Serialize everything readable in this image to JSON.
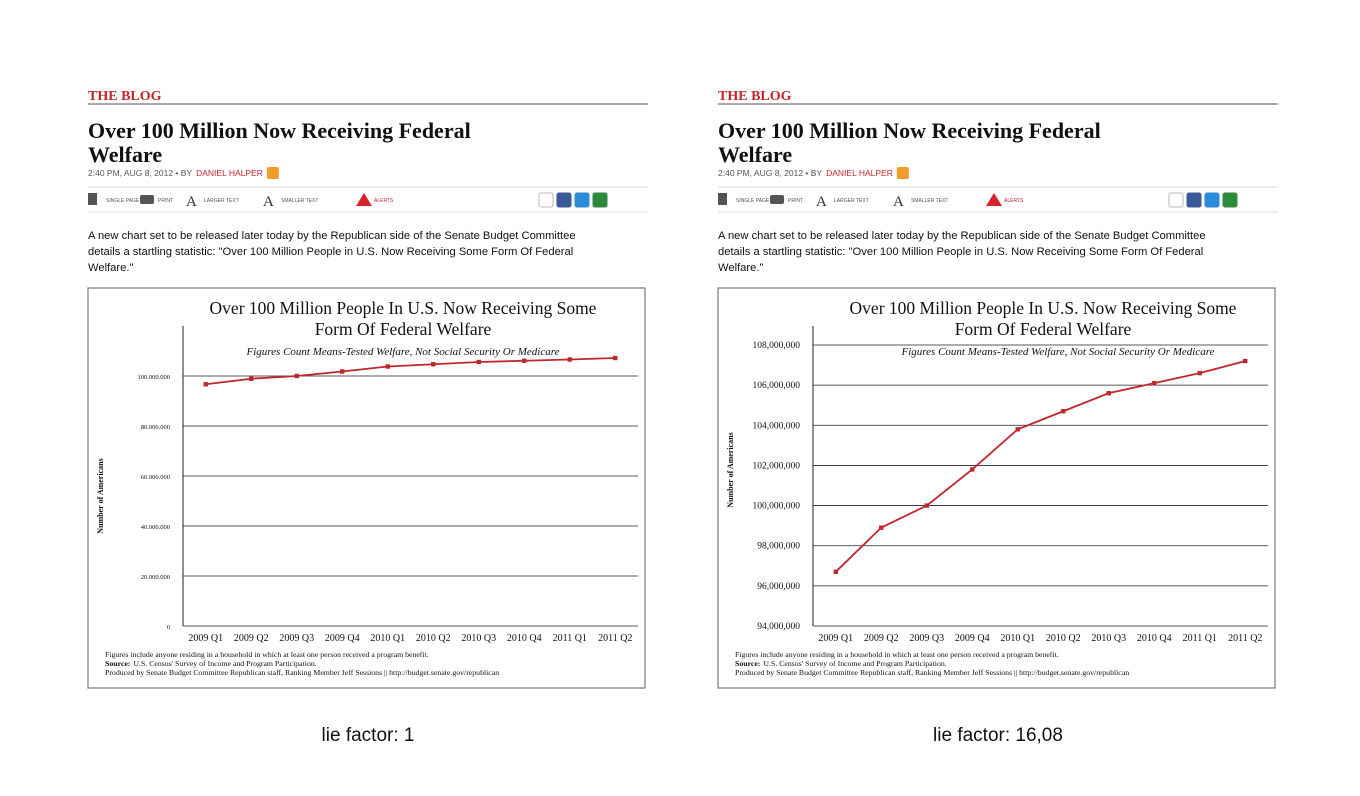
{
  "posts": [
    {
      "section": "THE BLOG",
      "headline": [
        "Over 100 Million Now Receiving Federal",
        "Welfare"
      ],
      "byline": "2:40 PM, AUG 8, 2012 • BY",
      "author": "DANIEL HALPER",
      "tools": [
        "SINGLE PAGE",
        "PRINT",
        "LARGER TEXT",
        "SMALLER TEXT",
        "ALERTS"
      ],
      "paragraph": [
        "A new chart set to be released later today by the Republican side of the Senate Budget Committee",
        "details a startling statistic: \"Over 100 Million People in U.S. Now Receiving Some Form Of Federal",
        "Welfare.\""
      ],
      "caption": "lie factor: 1"
    },
    {
      "section": "THE BLOG",
      "headline": [
        "Over 100 Million Now Receiving Federal",
        "Welfare"
      ],
      "byline": "2:40 PM, AUG 8, 2012 • BY",
      "author": "DANIEL HALPER",
      "tools": [
        "SINGLE PAGE",
        "PRINT",
        "LARGER TEXT",
        "SMALLER TEXT",
        "ALERTS"
      ],
      "paragraph": [
        "A new chart set to be released later today by the Republican side of the Senate Budget Committee",
        "details a startling statistic: \"Over 100 Million People in U.S. Now Receiving Some Form Of Federal",
        "Welfare.\""
      ],
      "caption": "lie factor: 16,08"
    }
  ],
  "chart_data": [
    {
      "type": "line",
      "title": [
        "Over 100 Million People In U.S. Now Receiving Some",
        "Form Of Federal Welfare"
      ],
      "subtitle": "Figures Count Means-Tested Welfare, Not Social Security Or Medicare",
      "y_label": "Number of Americans",
      "categories": [
        "2009 Q1",
        "2009 Q2",
        "2009 Q3",
        "2009 Q4",
        "2010 Q1",
        "2010 Q2",
        "2010 Q3",
        "2010 Q4",
        "2011 Q1",
        "2011 Q2"
      ],
      "values": [
        96700000,
        98900000,
        100000000,
        101800000,
        103800000,
        104700000,
        105600000,
        106100000,
        106600000,
        107200000
      ],
      "color": "#c0272d",
      "ylim": [
        0,
        120000000
      ],
      "yticks": [
        0,
        {
          "value": 20000000,
          "label": "20.000.000"
        },
        {
          "value": 40000000,
          "label": "40.000.000"
        },
        {
          "value": 60000000,
          "label": "60.000.000"
        },
        {
          "value": 80000000,
          "label": "80.000.000"
        },
        {
          "value": 100000000,
          "label": "100.000.000"
        }
      ],
      "grid": true,
      "notes": [
        "Figures include anyone residing in a household in which at least one person received a program benefit.",
        "Produced by Senate Budget Committee Republican staff, Ranking Member Jeff Sessions || http://budget.senate.gov/republican"
      ],
      "source": {
        "label": "Source:",
        "text": "U.S. Census' Survey of Income and Program Participation."
      }
    },
    {
      "type": "line",
      "title": [
        "Over 100 Million People In U.S. Now Receiving Some",
        "Form Of Federal Welfare"
      ],
      "subtitle": "Figures Count Means-Tested Welfare, Not Social Security Or Medicare",
      "y_label": "Number of Americans",
      "categories": [
        "2009 Q1",
        "2009 Q2",
        "2009 Q3",
        "2009 Q4",
        "2010 Q1",
        "2010 Q2",
        "2010 Q3",
        "2010 Q4",
        "2011 Q1",
        "2011 Q2"
      ],
      "values": [
        96700000,
        98900000,
        100000000,
        101800000,
        103800000,
        104700000,
        105600000,
        106100000,
        106600000,
        107200000
      ],
      "color": "#c0272d",
      "ylim": [
        94000000,
        108000000
      ],
      "yticks": [
        {
          "value": 94000000,
          "label": "94,000,000"
        },
        {
          "value": 96000000,
          "label": "96,000,000"
        },
        {
          "value": 98000000,
          "label": "98,000,000"
        },
        {
          "value": 100000000,
          "label": "100,000,000"
        },
        {
          "value": 102000000,
          "label": "102,000,000"
        },
        {
          "value": 104000000,
          "label": "104,000,000"
        },
        {
          "value": 106000000,
          "label": "106,000,000"
        },
        {
          "value": 108000000,
          "label": "108,000,000"
        }
      ],
      "grid": true,
      "notes": [
        "Figures include anyone residing in a household in which at least one person received a program benefit.",
        "Produced by Senate Budget Committee Republican staff, Ranking Member Jeff Sessions || http://budget.senate.gov/republican"
      ],
      "source": {
        "label": "Source:",
        "text": "U.S. Census' Survey of Income and Program Participation."
      }
    }
  ]
}
